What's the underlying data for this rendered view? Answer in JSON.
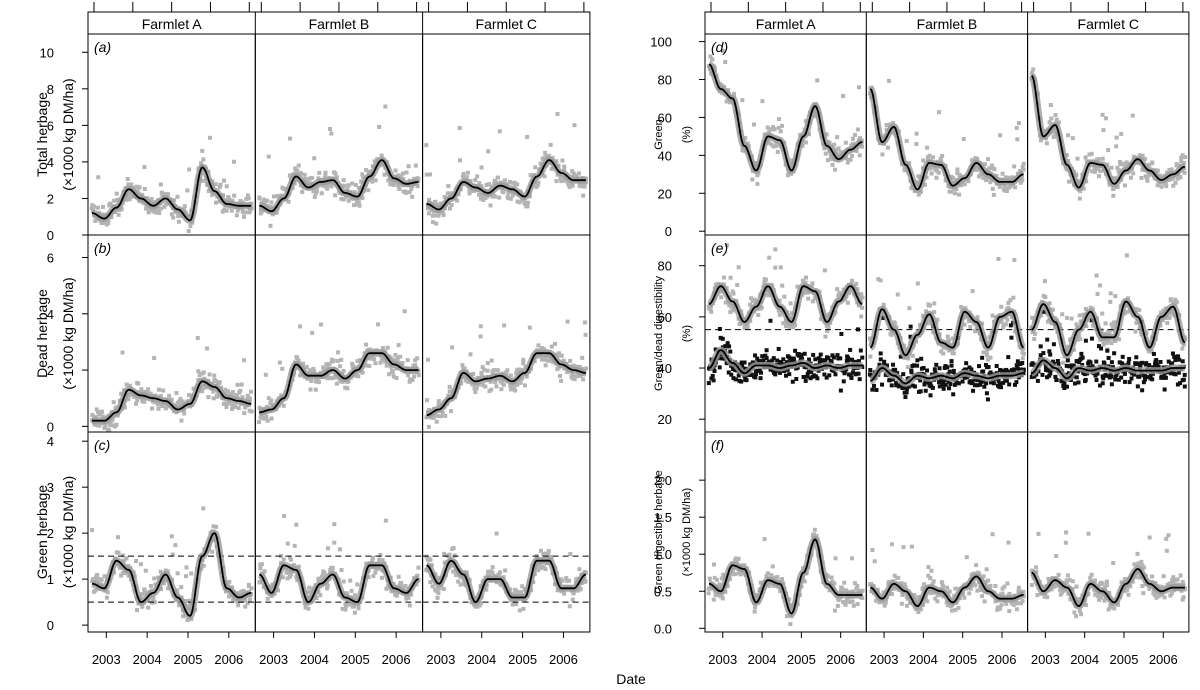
{
  "figure": {
    "xlabel": "Date",
    "farmlets": [
      "Farmlet A",
      "Farmlet B",
      "Farmlet C"
    ],
    "year_ticks": [
      "2003",
      "2004",
      "2005",
      "2006"
    ]
  },
  "chart_data": [
    {
      "id": "a",
      "panel_label": "(a)",
      "type": "scatter",
      "ylabel_lines": [
        "Total herbage",
        "(×1000 kg DM/ha)"
      ],
      "ylim": [
        0,
        11
      ],
      "yticks": [
        0,
        2,
        4,
        6,
        8,
        10
      ],
      "x_range": [
        2002.7,
        2006.6
      ],
      "smooth_series": [
        {
          "name": "",
          "facet": "Farmlet A",
          "x": [
            2002.7,
            2003.0,
            2003.3,
            2003.6,
            2003.9,
            2004.2,
            2004.5,
            2004.8,
            2005.1,
            2005.4,
            2005.7,
            2006.0,
            2006.3,
            2006.6
          ],
          "y": [
            1.2,
            0.9,
            1.5,
            2.5,
            2.0,
            1.6,
            2.0,
            1.4,
            0.8,
            3.7,
            2.4,
            1.7,
            1.6,
            1.6
          ]
        },
        {
          "name": "",
          "facet": "Farmlet B",
          "x": [
            2002.7,
            2003.0,
            2003.3,
            2003.6,
            2003.9,
            2004.2,
            2004.5,
            2004.8,
            2005.1,
            2005.4,
            2005.7,
            2006.0,
            2006.3,
            2006.6
          ],
          "y": [
            1.6,
            1.3,
            2.0,
            3.2,
            2.6,
            2.9,
            3.0,
            2.3,
            2.1,
            3.2,
            4.1,
            3.1,
            2.8,
            2.9
          ]
        },
        {
          "name": "",
          "facet": "Farmlet C",
          "x": [
            2002.7,
            2003.0,
            2003.3,
            2003.6,
            2003.9,
            2004.2,
            2004.5,
            2004.8,
            2005.1,
            2005.4,
            2005.7,
            2006.0,
            2006.3,
            2006.6
          ],
          "y": [
            1.7,
            1.4,
            2.0,
            2.9,
            2.6,
            2.3,
            2.7,
            2.5,
            2.1,
            3.2,
            4.1,
            3.4,
            3.0,
            3.0
          ]
        }
      ],
      "reference_lines": []
    },
    {
      "id": "b",
      "panel_label": "(b)",
      "type": "scatter",
      "ylabel_lines": [
        "Dead herbage",
        "(×1000 kg DM/ha)"
      ],
      "ylim": [
        -0.2,
        6.8
      ],
      "yticks": [
        0,
        2,
        4,
        6
      ],
      "x_range": [
        2002.7,
        2006.6
      ],
      "smooth_series": [
        {
          "name": "",
          "facet": "Farmlet A",
          "x": [
            2002.7,
            2003.0,
            2003.3,
            2003.6,
            2003.9,
            2004.2,
            2004.5,
            2004.8,
            2005.1,
            2005.4,
            2005.7,
            2006.0,
            2006.3,
            2006.6
          ],
          "y": [
            0.2,
            0.2,
            0.5,
            1.3,
            1.1,
            1.0,
            0.9,
            0.6,
            0.8,
            1.6,
            1.4,
            1.0,
            0.9,
            0.8
          ]
        },
        {
          "name": "",
          "facet": "Farmlet B",
          "x": [
            2002.7,
            2003.0,
            2003.3,
            2003.6,
            2003.9,
            2004.2,
            2004.5,
            2004.8,
            2005.1,
            2005.4,
            2005.7,
            2006.0,
            2006.3,
            2006.6
          ],
          "y": [
            0.5,
            0.6,
            1.0,
            2.2,
            1.8,
            1.8,
            2.0,
            1.7,
            2.0,
            2.6,
            2.6,
            2.2,
            2.0,
            2.0
          ]
        },
        {
          "name": "",
          "facet": "Farmlet C",
          "x": [
            2002.7,
            2003.0,
            2003.3,
            2003.6,
            2003.9,
            2004.2,
            2004.5,
            2004.8,
            2005.1,
            2005.4,
            2005.7,
            2006.0,
            2006.3,
            2006.6
          ],
          "y": [
            0.4,
            0.6,
            1.0,
            1.9,
            1.6,
            1.7,
            1.8,
            1.6,
            1.9,
            2.6,
            2.6,
            2.2,
            2.0,
            1.9
          ]
        }
      ],
      "reference_lines": []
    },
    {
      "id": "c",
      "panel_label": "(c)",
      "type": "scatter",
      "ylabel_lines": [
        "Green herbage",
        "(×1000 kg DM/ha)"
      ],
      "ylim": [
        -0.15,
        4.2
      ],
      "yticks": [
        0,
        1,
        2,
        3,
        4
      ],
      "x_range": [
        2002.7,
        2006.6
      ],
      "smooth_series": [
        {
          "name": "",
          "facet": "Farmlet A",
          "x": [
            2002.7,
            2003.0,
            2003.3,
            2003.6,
            2003.9,
            2004.2,
            2004.5,
            2004.8,
            2005.1,
            2005.4,
            2005.7,
            2006.0,
            2006.3,
            2006.6
          ],
          "y": [
            0.9,
            0.8,
            1.4,
            1.2,
            0.5,
            0.7,
            1.1,
            0.6,
            0.2,
            1.5,
            2.0,
            0.8,
            0.6,
            0.7
          ]
        },
        {
          "name": "",
          "facet": "Farmlet B",
          "x": [
            2002.7,
            2003.0,
            2003.3,
            2003.6,
            2003.9,
            2004.2,
            2004.5,
            2004.8,
            2005.1,
            2005.4,
            2005.7,
            2006.0,
            2006.3,
            2006.6
          ],
          "y": [
            1.1,
            0.7,
            1.3,
            1.2,
            0.5,
            0.9,
            1.1,
            0.6,
            0.5,
            1.3,
            1.3,
            0.8,
            0.7,
            1.0
          ]
        },
        {
          "name": "",
          "facet": "Farmlet C",
          "x": [
            2002.7,
            2003.0,
            2003.3,
            2003.6,
            2003.9,
            2004.2,
            2004.5,
            2004.8,
            2005.1,
            2005.4,
            2005.7,
            2006.0,
            2006.3,
            2006.6
          ],
          "y": [
            1.3,
            0.9,
            1.4,
            1.1,
            0.5,
            1.0,
            1.0,
            0.6,
            0.6,
            1.4,
            1.4,
            0.8,
            0.8,
            1.1
          ]
        }
      ],
      "reference_lines": [
        0.5,
        1.5
      ]
    },
    {
      "id": "d",
      "panel_label": "(d)",
      "type": "scatter",
      "ylabel_lines": [
        "Green",
        "(%)"
      ],
      "ylim": [
        -2,
        104
      ],
      "yticks": [
        0,
        20,
        40,
        60,
        80,
        100
      ],
      "x_range": [
        2002.7,
        2006.6
      ],
      "smooth_series": [
        {
          "name": "",
          "facet": "Farmlet A",
          "x": [
            2002.7,
            2003.0,
            2003.3,
            2003.6,
            2003.9,
            2004.2,
            2004.5,
            2004.8,
            2005.1,
            2005.4,
            2005.7,
            2006.0,
            2006.3,
            2006.6
          ],
          "y": [
            88,
            75,
            70,
            45,
            32,
            50,
            48,
            32,
            50,
            66,
            45,
            38,
            43,
            47
          ]
        },
        {
          "name": "",
          "facet": "Farmlet B",
          "x": [
            2002.7,
            2003.0,
            2003.3,
            2003.6,
            2003.9,
            2004.2,
            2004.5,
            2004.8,
            2005.1,
            2005.4,
            2005.7,
            2006.0,
            2006.3,
            2006.6
          ],
          "y": [
            75,
            47,
            55,
            35,
            22,
            36,
            35,
            24,
            28,
            36,
            30,
            26,
            26,
            30
          ]
        },
        {
          "name": "",
          "facet": "Farmlet C",
          "x": [
            2002.7,
            2003.0,
            2003.3,
            2003.6,
            2003.9,
            2004.2,
            2004.5,
            2004.8,
            2005.1,
            2005.4,
            2005.7,
            2006.0,
            2006.3,
            2006.6
          ],
          "y": [
            82,
            50,
            56,
            35,
            23,
            36,
            35,
            25,
            32,
            38,
            32,
            27,
            30,
            34
          ]
        }
      ],
      "reference_lines": []
    },
    {
      "id": "e",
      "panel_label": "(e)",
      "type": "scatter",
      "ylabel_lines": [
        "Green/dead digestibility",
        "(%)"
      ],
      "ylim": [
        15,
        92
      ],
      "yticks": [
        20,
        40,
        60,
        80
      ],
      "x_range": [
        2002.7,
        2006.6
      ],
      "smooth_series": [
        {
          "name": "",
          "facet": "Farmlet A",
          "x": [
            2002.7,
            2003.0,
            2003.3,
            2003.6,
            2003.9,
            2004.2,
            2004.5,
            2004.8,
            2005.1,
            2005.4,
            2005.7,
            2006.0,
            2006.3,
            2006.6
          ],
          "y": [
            65,
            72,
            66,
            58,
            64,
            72,
            64,
            58,
            72,
            70,
            58,
            66,
            72,
            65
          ]
        },
        {
          "name": "",
          "facet": "Farmlet A",
          "x": [
            2002.7,
            2003.0,
            2003.3,
            2003.6,
            2003.9,
            2004.2,
            2004.5,
            2004.8,
            2005.1,
            2005.4,
            2005.7,
            2006.0,
            2006.3,
            2006.6
          ],
          "y": [
            40,
            47,
            42,
            38,
            41,
            41,
            40,
            41,
            42,
            40,
            41,
            40,
            41,
            41
          ]
        },
        {
          "name": "",
          "facet": "Farmlet B",
          "x": [
            2002.7,
            2003.0,
            2003.3,
            2003.6,
            2003.9,
            2004.2,
            2004.5,
            2004.8,
            2005.1,
            2005.4,
            2005.7,
            2006.0,
            2006.3,
            2006.6
          ],
          "y": [
            48,
            63,
            55,
            45,
            53,
            61,
            50,
            48,
            62,
            58,
            48,
            60,
            62,
            48
          ]
        },
        {
          "name": "",
          "facet": "Farmlet B",
          "x": [
            2002.7,
            2003.0,
            2003.3,
            2003.6,
            2003.9,
            2004.2,
            2004.5,
            2004.8,
            2005.1,
            2005.4,
            2005.7,
            2006.0,
            2006.3,
            2006.6
          ],
          "y": [
            35,
            40,
            37,
            34,
            37,
            36,
            37,
            36,
            38,
            37,
            36,
            37,
            37,
            38
          ]
        },
        {
          "name": "",
          "facet": "Farmlet C",
          "x": [
            2002.7,
            2003.0,
            2003.3,
            2003.6,
            2003.9,
            2004.2,
            2004.5,
            2004.8,
            2005.1,
            2005.4,
            2005.7,
            2006.0,
            2006.3,
            2006.6
          ],
          "y": [
            55,
            65,
            58,
            45,
            55,
            62,
            52,
            52,
            66,
            60,
            48,
            60,
            64,
            50
          ]
        },
        {
          "name": "",
          "facet": "Farmlet C",
          "x": [
            2002.7,
            2003.0,
            2003.3,
            2003.6,
            2003.9,
            2004.2,
            2004.5,
            2004.8,
            2005.1,
            2005.4,
            2005.7,
            2006.0,
            2006.3,
            2006.6
          ],
          "y": [
            38,
            43,
            40,
            36,
            40,
            39,
            40,
            39,
            40,
            39,
            39,
            39,
            40,
            40
          ]
        }
      ],
      "reference_lines": [
        55
      ]
    },
    {
      "id": "f",
      "panel_label": "(f)",
      "type": "scatter",
      "ylabel_lines": [
        "Green digestible herbage",
        "(×1000 kg DM/ha)"
      ],
      "ylim": [
        -0.05,
        2.65
      ],
      "yticks": [
        0.0,
        0.5,
        1.0,
        1.5,
        2.0
      ],
      "x_range": [
        2002.7,
        2006.6
      ],
      "smooth_series": [
        {
          "name": "",
          "facet": "Farmlet A",
          "x": [
            2002.7,
            2003.0,
            2003.3,
            2003.6,
            2003.9,
            2004.2,
            2004.5,
            2004.8,
            2005.1,
            2005.4,
            2005.7,
            2006.0,
            2006.3,
            2006.6
          ],
          "y": [
            0.6,
            0.5,
            0.85,
            0.8,
            0.35,
            0.65,
            0.6,
            0.2,
            0.75,
            1.2,
            0.6,
            0.45,
            0.45,
            0.45
          ]
        },
        {
          "name": "",
          "facet": "Farmlet B",
          "x": [
            2002.7,
            2003.0,
            2003.3,
            2003.6,
            2003.9,
            2004.2,
            2004.5,
            2004.8,
            2005.1,
            2005.4,
            2005.7,
            2006.0,
            2006.3,
            2006.6
          ],
          "y": [
            0.55,
            0.4,
            0.6,
            0.5,
            0.3,
            0.55,
            0.5,
            0.35,
            0.55,
            0.7,
            0.5,
            0.4,
            0.4,
            0.45
          ]
        },
        {
          "name": "",
          "facet": "Farmlet C",
          "x": [
            2002.7,
            2003.0,
            2003.3,
            2003.6,
            2003.9,
            2004.2,
            2004.5,
            2004.8,
            2005.1,
            2005.4,
            2005.7,
            2006.0,
            2006.3,
            2006.6
          ],
          "y": [
            0.75,
            0.5,
            0.65,
            0.55,
            0.3,
            0.6,
            0.5,
            0.35,
            0.6,
            0.8,
            0.6,
            0.5,
            0.55,
            0.55
          ]
        }
      ],
      "reference_lines": []
    }
  ]
}
